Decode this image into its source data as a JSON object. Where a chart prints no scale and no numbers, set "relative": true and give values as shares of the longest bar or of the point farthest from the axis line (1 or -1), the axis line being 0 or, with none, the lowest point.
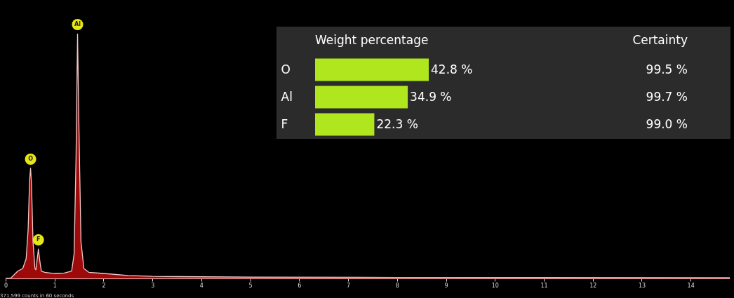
{
  "chart_data": [
    {
      "type": "area",
      "relative": true,
      "color": "#9e0a0a",
      "xlim": [
        0,
        14.8
      ],
      "xticks": [
        0,
        1,
        2,
        3,
        4,
        5,
        6,
        7,
        8,
        9,
        10,
        11,
        12,
        13,
        14
      ],
      "x": [
        0,
        0.1,
        0.15,
        0.25,
        0.35,
        0.42,
        0.46,
        0.49,
        0.51,
        0.53,
        0.56,
        0.6,
        0.62,
        0.64,
        0.67,
        0.7,
        0.73,
        0.8,
        1.0,
        1.2,
        1.35,
        1.4,
        1.44,
        1.47,
        1.5,
        1.54,
        1.6,
        1.7,
        2.0,
        2.5,
        3.0,
        5,
        8,
        14.8
      ],
      "values": [
        0,
        0,
        0.01,
        0.03,
        0.04,
        0.08,
        0.2,
        0.4,
        0.45,
        0.38,
        0.15,
        0.04,
        0.035,
        0.07,
        0.12,
        0.07,
        0.03,
        0.025,
        0.02,
        0.022,
        0.03,
        0.1,
        0.5,
        1.0,
        0.6,
        0.15,
        0.04,
        0.025,
        0.02,
        0.012,
        0.008,
        0.005,
        0.004,
        0.003
      ],
      "annotations": [
        {
          "text": "O",
          "x": 0.51,
          "y": 0.45
        },
        {
          "text": "F",
          "x": 0.67,
          "y": 0.12
        },
        {
          "text": "Al",
          "x": 1.47,
          "y": 1.0
        },
        "371,599 counts in 60 seconds"
      ]
    },
    {
      "type": "bar",
      "orientation": "horizontal",
      "title": "Weight percentage",
      "categories": [
        "O",
        "Al",
        "F"
      ],
      "values": [
        42.8,
        34.9,
        22.3
      ],
      "color": "#b0e61e",
      "value_labels": [
        "42.8 %",
        "34.9 %",
        "22.3 %"
      ],
      "annotations": [
        "Certainty",
        "99.5 %",
        "99.7 %",
        "99.0 %"
      ]
    }
  ]
}
